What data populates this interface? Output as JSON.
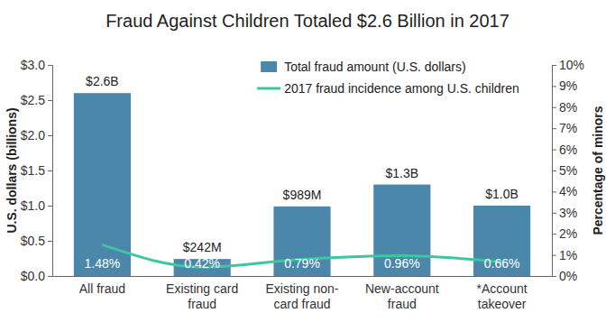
{
  "chart_data": {
    "type": "bar",
    "title": "Fraud Against Children Totaled $2.6 Billion in 2017",
    "categories": [
      "All fraud",
      "Existing card fraud",
      "Existing non-card fraud",
      "New-account fraud",
      "*Account takeover"
    ],
    "series": [
      {
        "name": "Total fraud amount (U.S. dollars)",
        "type": "bar",
        "color": "#4a87ab",
        "values": [
          2.6,
          0.242,
          0.989,
          1.3,
          1.0
        ],
        "value_labels": [
          "$2.6B",
          "$242M",
          "$989M",
          "$1.3B",
          "$1.0B"
        ]
      },
      {
        "name": "2017 fraud incidence among U.S. children",
        "type": "line",
        "axis": "y2",
        "color": "#3ec79f",
        "values": [
          1.48,
          0.42,
          0.79,
          0.96,
          0.66
        ],
        "value_labels": [
          "1.48%",
          "0.42%",
          "0.79%",
          "0.96%",
          "0.66%"
        ]
      }
    ],
    "y_label": "U.S. dollars (billions)",
    "y2_label": "Percentage of minors",
    "ylim": [
      0,
      3
    ],
    "yticks": [
      {
        "value": 0,
        "label": "$0.0"
      },
      {
        "value": 0.5,
        "label": "$0.5"
      },
      {
        "value": 1,
        "label": "$1.0"
      },
      {
        "value": 1.5,
        "label": "$1.5"
      },
      {
        "value": 2,
        "label": "$2.0"
      },
      {
        "value": 2.5,
        "label": "$2.5"
      },
      {
        "value": 3,
        "label": "$3.0"
      }
    ],
    "y2lim": [
      0,
      10
    ],
    "y2ticks": [
      {
        "value": 0,
        "label": "0%"
      },
      {
        "value": 1,
        "label": "1%"
      },
      {
        "value": 2,
        "label": "2%"
      },
      {
        "value": 3,
        "label": "3%"
      },
      {
        "value": 4,
        "label": "4%"
      },
      {
        "value": 5,
        "label": "5%"
      },
      {
        "value": 6,
        "label": "6%"
      },
      {
        "value": 7,
        "label": "7%"
      },
      {
        "value": 8,
        "label": "8%"
      },
      {
        "value": 9,
        "label": "9%"
      },
      {
        "value": 10,
        "label": "10%"
      }
    ],
    "data_labels": true,
    "legend": "top",
    "grid": false
  }
}
